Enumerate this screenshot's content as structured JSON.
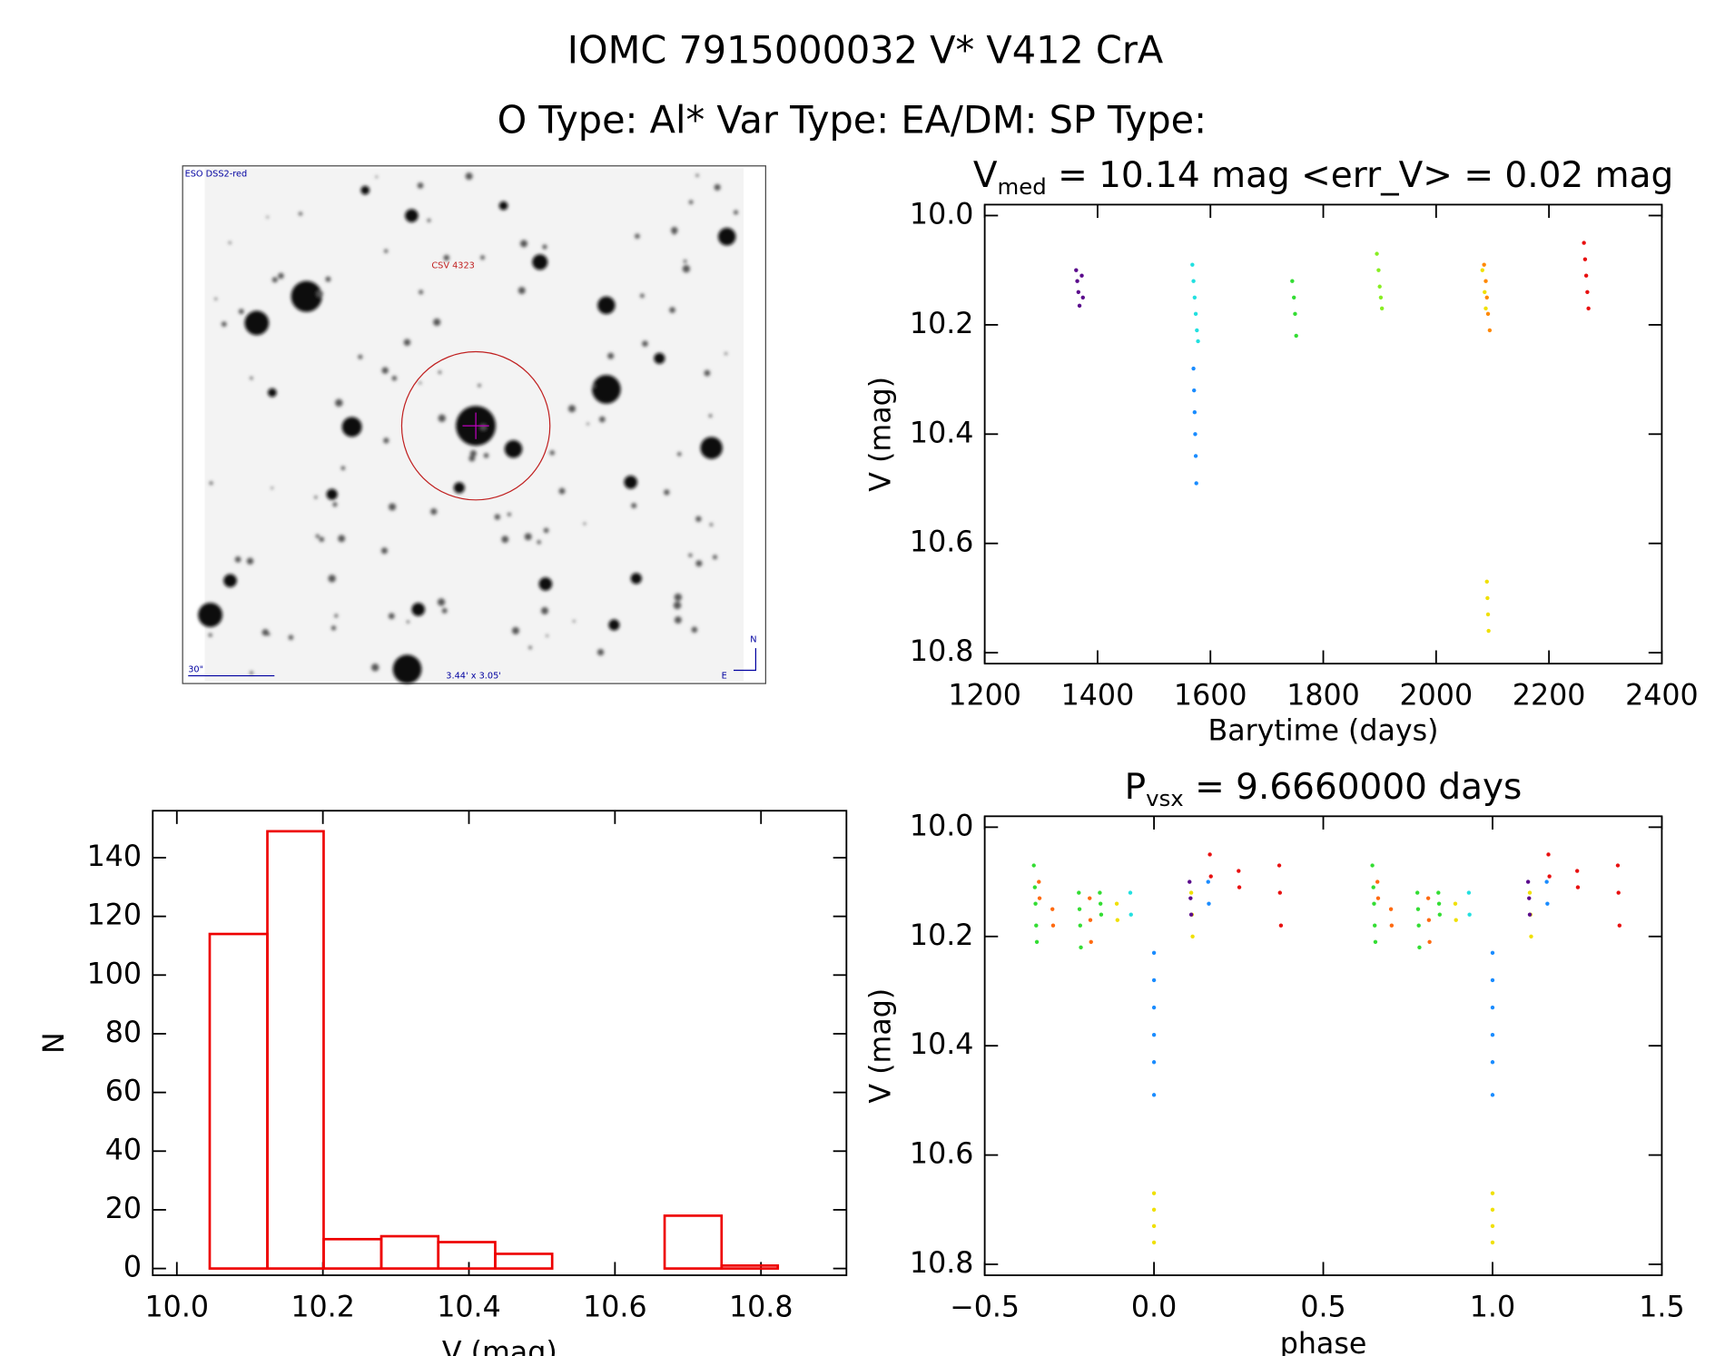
{
  "header": {
    "title": "IOMC 7915000032   V* V412 CrA",
    "subtitle": "O Type: Al*  Var Type: EA/DM:  SP Type:"
  },
  "finder": {
    "survey": "ESO DSS2-red",
    "target": "CSV 4323",
    "scale": "30\"",
    "fov": "3.44' x 3.05'",
    "north": "N",
    "east": "E"
  },
  "chart_data": [
    {
      "type": "scatter",
      "title_parts": [
        "V",
        "med",
        " = 10.14 mag <err_V> = 0.02 mag"
      ],
      "x_label": "Barytime (days)",
      "y_label": "V (mag)",
      "y_inverted": true,
      "xlim": [
        1200,
        2400
      ],
      "xticks": [
        1200,
        1400,
        1600,
        1800,
        2000,
        2200,
        2400
      ],
      "ylim": [
        9.98,
        10.82
      ],
      "yticks": [
        {
          "value": 10,
          "label": "10.0"
        },
        10.2,
        10.4,
        10.6,
        10.8
      ],
      "series": [
        {
          "color": "#5a0a8c",
          "x": [
            1362,
            1364,
            1366,
            1368,
            1372,
            1374
          ],
          "values": [
            10.1,
            10.12,
            10.14,
            10.165,
            10.11,
            10.15
          ]
        },
        {
          "color": "#22e0e0",
          "x": [
            1568,
            1570,
            1572,
            1574,
            1576,
            1578
          ],
          "values": [
            10.09,
            10.12,
            10.15,
            10.18,
            10.21,
            10.23
          ]
        },
        {
          "color": "#1a8cff",
          "x": [
            1570,
            1571,
            1572,
            1573,
            1574,
            1575
          ],
          "values": [
            10.28,
            10.32,
            10.36,
            10.4,
            10.44,
            10.49
          ]
        },
        {
          "color": "#33dd33",
          "x": [
            1745,
            1748,
            1750,
            1752
          ],
          "values": [
            10.12,
            10.15,
            10.18,
            10.22
          ]
        },
        {
          "color": "#88ee22",
          "x": [
            1895,
            1898,
            1900,
            1902,
            1904
          ],
          "values": [
            10.07,
            10.1,
            10.13,
            10.15,
            10.17
          ]
        },
        {
          "color": "#ff8800",
          "x": [
            2085,
            2088,
            2090,
            2092,
            2095
          ],
          "values": [
            10.09,
            10.12,
            10.15,
            10.18,
            10.21
          ]
        },
        {
          "color": "#f0e000",
          "x": [
            2082,
            2086,
            2088,
            2090,
            2091,
            2092,
            2093
          ],
          "values": [
            10.1,
            10.14,
            10.17,
            10.67,
            10.7,
            10.73,
            10.76
          ]
        },
        {
          "color": "#e81010",
          "x": [
            2262,
            2264,
            2266,
            2268,
            2270
          ],
          "values": [
            10.05,
            10.08,
            10.11,
            10.14,
            10.17
          ]
        }
      ]
    },
    {
      "type": "histogram",
      "x_label": "V (mag)",
      "y_label": "N",
      "color": "#ee0000",
      "bins": [
        10.045,
        10.124,
        10.201,
        10.28,
        10.358,
        10.436,
        10.514,
        10.59,
        10.668,
        10.746,
        10.823
      ],
      "values": [
        114,
        149,
        10,
        11,
        9,
        5,
        0,
        0,
        18,
        1
      ],
      "xlim": [
        9.967,
        10.917
      ],
      "xticks": [
        {
          "value": 10,
          "label": "10.0"
        },
        10.2,
        10.4,
        10.6,
        10.8
      ],
      "ylim": [
        -2.3,
        156
      ],
      "yticks": [
        0,
        20,
        40,
        60,
        80,
        100,
        120,
        140
      ]
    },
    {
      "type": "scatter",
      "title_parts": [
        "P",
        "vsx",
        " = 9.6660000 days"
      ],
      "x_label": "phase",
      "y_label": "V (mag)",
      "y_inverted": true,
      "xlim": [
        -0.5,
        1.5
      ],
      "xticks": [
        {
          "value": -0.5,
          "label": "−0.5"
        },
        {
          "value": 0,
          "label": "0.0"
        },
        0.5,
        {
          "value": 1,
          "label": "1.0"
        },
        1.5
      ],
      "ylim": [
        9.98,
        10.82
      ],
      "yticks": [
        {
          "value": 10,
          "label": "10.0"
        },
        10.2,
        10.4,
        10.6,
        10.8
      ],
      "series": [
        {
          "color": "#33dd33",
          "x": [
            -0.355,
            -0.352,
            -0.35,
            -0.348,
            -0.346,
            -0.222,
            -0.22,
            -0.218,
            -0.216,
            -0.16,
            -0.158,
            -0.156,
            0.645,
            0.648,
            0.65,
            0.652,
            0.654,
            0.778,
            0.78,
            0.782,
            0.784,
            0.84,
            0.842,
            0.844
          ],
          "values": [
            10.07,
            10.11,
            10.14,
            10.18,
            10.21,
            10.12,
            10.15,
            10.18,
            10.22,
            10.12,
            10.14,
            10.16,
            10.07,
            10.11,
            10.14,
            10.18,
            10.21,
            10.12,
            10.15,
            10.18,
            10.22,
            10.12,
            10.14,
            10.16
          ]
        },
        {
          "color": "#ff6a10",
          "x": [
            -0.34,
            -0.338,
            -0.3,
            -0.298,
            -0.19,
            -0.188,
            -0.186,
            0.66,
            0.662,
            0.7,
            0.702,
            0.81,
            0.812,
            0.814
          ],
          "values": [
            10.1,
            10.13,
            10.15,
            10.18,
            10.13,
            10.17,
            10.21,
            10.1,
            10.13,
            10.15,
            10.18,
            10.13,
            10.17,
            10.21
          ]
        },
        {
          "color": "#f0e000",
          "x": [
            -0.11,
            -0.108,
            0,
            0,
            0,
            0,
            0.11,
            0.112,
            0.114,
            0.89,
            0.892,
            1,
            1,
            1,
            1,
            1.11,
            1.112,
            1.114
          ],
          "values": [
            10.14,
            10.17,
            10.67,
            10.7,
            10.73,
            10.76,
            10.12,
            10.16,
            10.2,
            10.14,
            10.17,
            10.67,
            10.7,
            10.73,
            10.76,
            10.12,
            10.16,
            10.2
          ]
        },
        {
          "color": "#22e0e0",
          "x": [
            -0.07,
            -0.068,
            0.93,
            0.932
          ],
          "values": [
            10.12,
            10.16,
            10.12,
            10.16
          ]
        },
        {
          "color": "#1a8cff",
          "x": [
            0,
            0,
            0,
            0,
            0,
            0,
            0.16,
            0.162,
            1,
            1,
            1,
            1,
            1,
            1,
            1.16,
            1.162
          ],
          "values": [
            10.23,
            10.28,
            10.33,
            10.38,
            10.43,
            10.49,
            10.1,
            10.14,
            10.23,
            10.28,
            10.33,
            10.38,
            10.43,
            10.49,
            10.1,
            10.14
          ]
        },
        {
          "color": "#5a0a8c",
          "x": [
            0.105,
            0.108,
            0.11,
            1.105,
            1.108,
            1.11
          ],
          "values": [
            10.1,
            10.13,
            10.16,
            10.1,
            10.13,
            10.16
          ]
        },
        {
          "color": "#e81010",
          "x": [
            0.165,
            0.168,
            0.25,
            0.252,
            0.37,
            0.372,
            0.375,
            1.165,
            1.168,
            1.25,
            1.252,
            1.37,
            1.372,
            1.375
          ],
          "values": [
            10.05,
            10.09,
            10.08,
            10.11,
            10.07,
            10.12,
            10.18,
            10.05,
            10.09,
            10.08,
            10.11,
            10.07,
            10.12,
            10.18
          ]
        }
      ]
    }
  ]
}
